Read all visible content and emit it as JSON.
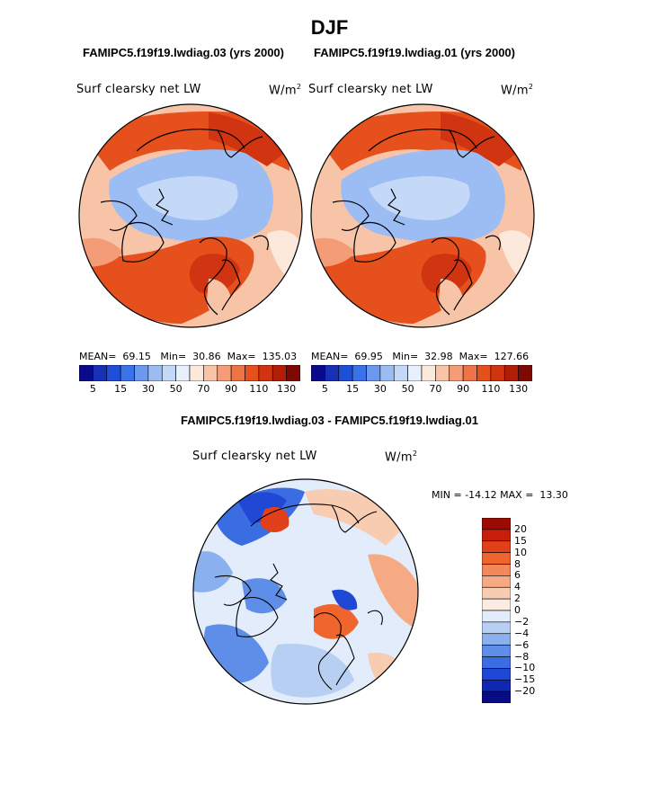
{
  "title": "DJF",
  "panel_left": {
    "case": "FAMIPC5.f19f19.lwdiag.03 (yrs 2000)",
    "variable": "Surf clearsky net LW",
    "units_base": "W/m",
    "units_exp": "2",
    "mean_label": "MEAN=",
    "mean": "69.15",
    "min_label": "Min=",
    "min": "30.86",
    "max_label": "Max=",
    "max": "135.03"
  },
  "panel_right": {
    "case": "FAMIPC5.f19f19.lwdiag.01 (yrs 2000)",
    "variable": "Surf clearsky net LW",
    "units_base": "W/m",
    "units_exp": "2",
    "mean_label": "MEAN=",
    "mean": "69.95",
    "min_label": "Min=",
    "min": "32.98",
    "max_label": "Max=",
    "max": "127.66"
  },
  "abs_colorbar": {
    "colors": [
      "#0a0a8c",
      "#1830b4",
      "#1f4fd8",
      "#3a72ea",
      "#6c98f0",
      "#9cbcf4",
      "#c4d8f8",
      "#e8f0fc",
      "#fde8dc",
      "#f8c4a8",
      "#f49c78",
      "#ee7448",
      "#e6501c",
      "#d03410",
      "#b01e08",
      "#7e0804"
    ],
    "tick_labels": [
      "5",
      "15",
      "30",
      "50",
      "70",
      "90",
      "110",
      "130"
    ]
  },
  "diff_panel": {
    "title": "FAMIPC5.f19f19.lwdiag.03 - FAMIPC5.f19f19.lwdiag.01",
    "variable": "Surf clearsky net LW",
    "units_base": "W/m",
    "units_exp": "2",
    "min_label": "MIN =",
    "min": "-14.12",
    "max_label": "MAX =",
    "max": "13.30"
  },
  "diff_colorbar": {
    "colors": [
      "#9c0a04",
      "#c81e0a",
      "#e2401a",
      "#f0642e",
      "#f4885a",
      "#f6aa84",
      "#f8ccb0",
      "#fbebe0",
      "#e2ecfa",
      "#b8cff4",
      "#8ab0ee",
      "#5e8ee8",
      "#3a6ce2",
      "#1f48d4",
      "#1028b0",
      "#080c84"
    ],
    "tick_labels": [
      "20",
      "15",
      "10",
      "8",
      "6",
      "4",
      "2",
      "0",
      "−2",
      "−4",
      "−6",
      "−8",
      "−10",
      "−15",
      "−20"
    ]
  }
}
